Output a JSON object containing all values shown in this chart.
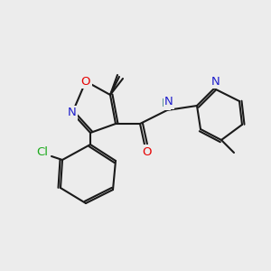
{
  "bg_color": "#ececec",
  "bond_color": "#1a1a1a",
  "bond_lw": 1.5,
  "atom_colors": {
    "O": "#e60000",
    "N": "#2020cc",
    "Cl": "#1aaa1a",
    "H": "#4a8a8a",
    "C": "#1a1a1a"
  },
  "font_size": 9.5,
  "font_size_small": 8.5
}
